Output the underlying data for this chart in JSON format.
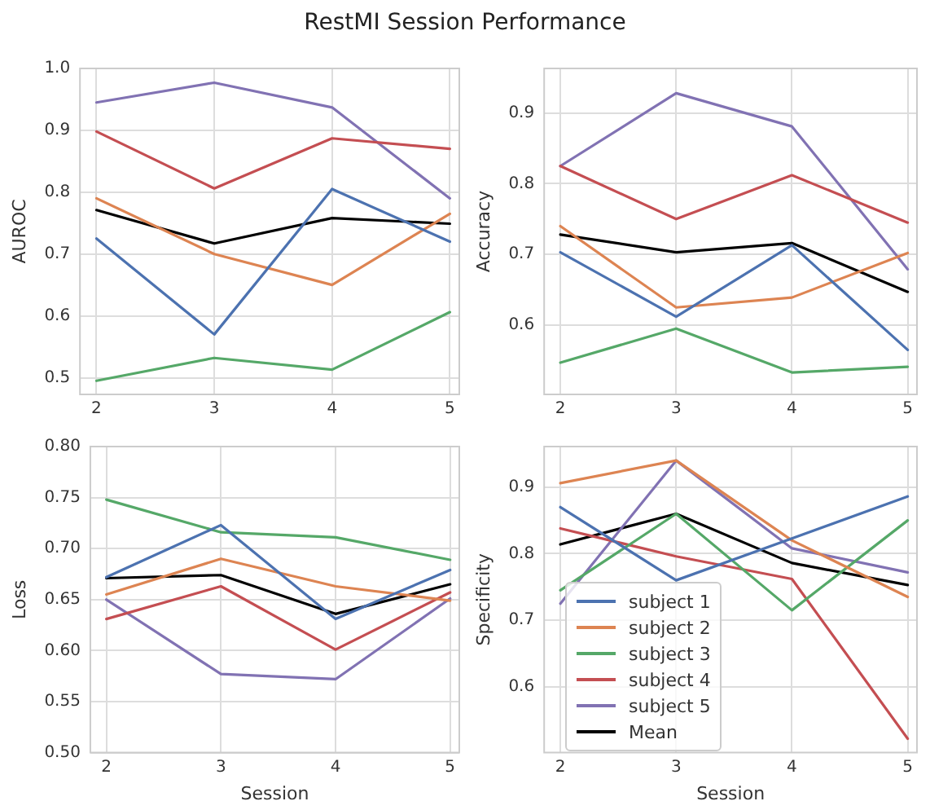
{
  "chart_data": [
    {
      "type": "line",
      "title": "RestMI Session Performance",
      "ylabel": "AUROC",
      "x": [
        2,
        3,
        4,
        5
      ],
      "xlim": [
        1.86,
        5.08
      ],
      "xticks": [
        2,
        3,
        4,
        5
      ],
      "ylim": [
        0.473,
        1.0
      ],
      "yticks": [
        0.5,
        0.6,
        0.7,
        0.8,
        0.9,
        {
          "value": 1,
          "label": "1.0"
        }
      ],
      "grid": true,
      "legend": false,
      "marker": "none",
      "line_style": "solid",
      "series": [
        {
          "color": "#4c72b0",
          "values": [
            0.725,
            0.57,
            0.805,
            0.72
          ]
        },
        {
          "color": "#dd8452",
          "values": [
            0.79,
            0.7,
            0.65,
            0.765
          ]
        },
        {
          "color": "#55a868",
          "values": [
            0.495,
            0.532,
            0.513,
            0.606
          ]
        },
        {
          "color": "#c44e52",
          "values": [
            0.898,
            0.806,
            0.887,
            0.87
          ]
        },
        {
          "color": "#8172b3",
          "values": [
            0.945,
            0.977,
            0.937,
            0.79
          ]
        },
        {
          "color": "#000000",
          "values": [
            0.771,
            0.717,
            0.758,
            0.749
          ]
        }
      ]
    },
    {
      "type": "line",
      "ylabel": "Accuracy",
      "x": [
        2,
        3,
        4,
        5
      ],
      "xlim": [
        1.86,
        5.08
      ],
      "xticks": [
        2,
        3,
        4,
        5
      ],
      "ylim": [
        0.502,
        0.963
      ],
      "yticks": [
        0.6,
        0.7,
        0.8,
        0.9
      ],
      "grid": true,
      "legend": false,
      "marker": "none",
      "line_style": "solid",
      "series": [
        {
          "color": "#4c72b0",
          "values": [
            0.703,
            0.612,
            0.713,
            0.565
          ]
        },
        {
          "color": "#dd8452",
          "values": [
            0.74,
            0.625,
            0.639,
            0.702
          ]
        },
        {
          "color": "#55a868",
          "values": [
            0.547,
            0.595,
            0.533,
            0.541
          ]
        },
        {
          "color": "#c44e52",
          "values": [
            0.825,
            0.75,
            0.812,
            0.745
          ]
        },
        {
          "color": "#8172b3",
          "values": [
            0.825,
            0.928,
            0.881,
            0.679
          ]
        },
        {
          "color": "#000000",
          "values": [
            0.728,
            0.703,
            0.716,
            0.647
          ]
        }
      ]
    },
    {
      "type": "line",
      "xlabel": "Session",
      "ylabel": "Loss",
      "x": [
        2,
        3,
        4,
        5
      ],
      "xlim": [
        1.86,
        5.08
      ],
      "xticks": [
        2,
        3,
        4,
        5
      ],
      "ylim": [
        0.5,
        0.8
      ],
      "yticks": [
        {
          "value": 0.5,
          "label": "0.50"
        },
        {
          "value": 0.55,
          "label": "0.55"
        },
        {
          "value": 0.6,
          "label": "0.60"
        },
        {
          "value": 0.65,
          "label": "0.65"
        },
        {
          "value": 0.7,
          "label": "0.70"
        },
        {
          "value": 0.75,
          "label": "0.75"
        },
        {
          "value": 0.8,
          "label": "0.80"
        }
      ],
      "grid": true,
      "legend": false,
      "marker": "none",
      "line_style": "solid",
      "series": [
        {
          "color": "#4c72b0",
          "values": [
            0.672,
            0.723,
            0.631,
            0.679
          ]
        },
        {
          "color": "#dd8452",
          "values": [
            0.655,
            0.69,
            0.663,
            0.649
          ]
        },
        {
          "color": "#55a868",
          "values": [
            0.748,
            0.716,
            0.711,
            0.689
          ]
        },
        {
          "color": "#c44e52",
          "values": [
            0.631,
            0.663,
            0.601,
            0.657
          ]
        },
        {
          "color": "#8172b3",
          "values": [
            0.65,
            0.577,
            0.572,
            0.651
          ]
        },
        {
          "color": "#000000",
          "values": [
            0.671,
            0.674,
            0.636,
            0.665
          ]
        }
      ]
    },
    {
      "type": "line",
      "xlabel": "Session",
      "ylabel": "Specificity",
      "x": [
        2,
        3,
        4,
        5
      ],
      "xlim": [
        1.86,
        5.08
      ],
      "xticks": [
        2,
        3,
        4,
        5
      ],
      "ylim": [
        0.501,
        0.961
      ],
      "yticks": [
        0.6,
        0.7,
        0.8,
        0.9
      ],
      "grid": true,
      "legend": "bottom left",
      "marker": "none",
      "line_style": "solid",
      "series": [
        {
          "name": "subject 1",
          "color": "#4c72b0",
          "values": [
            0.87,
            0.76,
            0.823,
            0.886
          ]
        },
        {
          "name": "subject 2",
          "color": "#dd8452",
          "values": [
            0.906,
            0.94,
            0.82,
            0.735
          ]
        },
        {
          "name": "subject 3",
          "color": "#55a868",
          "values": [
            0.745,
            0.86,
            0.715,
            0.85
          ]
        },
        {
          "name": "subject 4",
          "color": "#c44e52",
          "values": [
            0.838,
            0.796,
            0.762,
            0.522
          ]
        },
        {
          "name": "subject 5",
          "color": "#8172b3",
          "values": [
            0.725,
            0.94,
            0.808,
            0.772
          ]
        },
        {
          "name": "Mean",
          "color": "#000000",
          "values": [
            0.814,
            0.86,
            0.786,
            0.753
          ]
        }
      ]
    }
  ]
}
